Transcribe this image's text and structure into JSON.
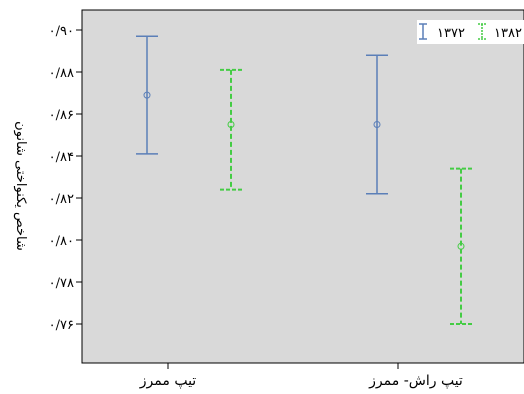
{
  "chart_data": {
    "type": "error-bar",
    "ylabel": "شاخص یکنواختی شانون",
    "ylim": [
      0.75,
      0.905
    ],
    "yticks": [
      0.76,
      0.78,
      0.8,
      0.82,
      0.84,
      0.86,
      0.88,
      0.9
    ],
    "ytick_labels": [
      "۰/۷۶",
      "۰/۷۸",
      "۰/۸۰",
      "۰/۸۲",
      "۰/۸۴",
      "۰/۸۶",
      "۰/۸۸",
      "۰/۹۰"
    ],
    "categories": [
      "تیپ ممرز",
      "تیپ راش- ممرز"
    ],
    "series": [
      {
        "name": "۱۳۷۲",
        "color": "#5b7fb8",
        "style": "solid",
        "points": [
          {
            "mean": 0.869,
            "low": 0.841,
            "high": 0.897
          },
          {
            "mean": 0.855,
            "low": 0.822,
            "high": 0.888
          }
        ]
      },
      {
        "name": "۱۳۸۲",
        "color": "#44cc44",
        "style": "dashed",
        "points": [
          {
            "mean": 0.855,
            "low": 0.824,
            "high": 0.881
          },
          {
            "mean": 0.797,
            "low": 0.76,
            "high": 0.834
          }
        ]
      }
    ],
    "legend_position": "top-right",
    "plot_background": "#d9d9d9"
  }
}
